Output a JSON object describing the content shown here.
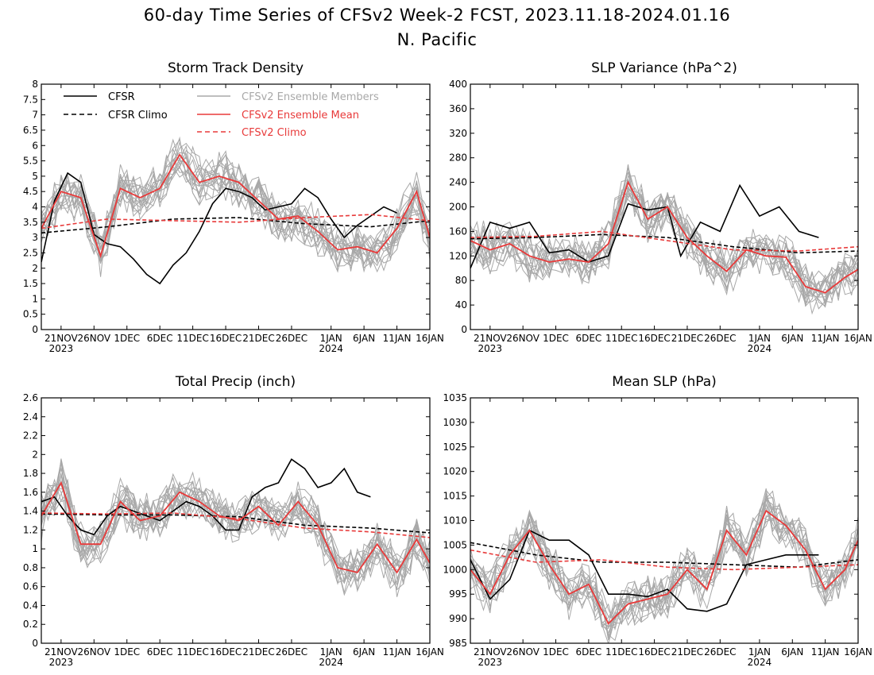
{
  "header": {
    "title_line1": "60-day Time Series of CFSv2 Week-2 FCST, 2023.11.18-2024.01.16",
    "title_line2": "N. Pacific"
  },
  "legend": {
    "cfsr": "CFSR",
    "cfsr_climo": "CFSR Climo",
    "members": "CFSv2 Ensemble Members",
    "ens_mean": "CFSv2 Ensemble Mean",
    "cfsv2_climo": "CFSv2 Climo"
  },
  "colors": {
    "cfsr": "#000000",
    "members": "#a8a8a8",
    "ens_mean": "#e83a3a",
    "cfsv2_climo": "#e83a3a"
  },
  "x_axis": {
    "tick_labels": [
      "21NOV",
      "26NOV",
      "1DEC",
      "6DEC",
      "11DEC",
      "16DEC",
      "21DEC",
      "26DEC",
      "1JAN",
      "6JAN",
      "11JAN",
      "16JAN"
    ],
    "year_labels": [
      "2023",
      "2024"
    ]
  },
  "chart_data": [
    {
      "type": "line",
      "title": "Storm Track Density",
      "ylim": [
        0,
        8
      ],
      "yticks": [
        "0",
        "0.5",
        "1",
        "1.5",
        "2",
        "2.5",
        "3",
        "3.5",
        "4",
        "4.5",
        "5",
        "5.5",
        "6",
        "6.5",
        "7",
        "7.5",
        "8"
      ],
      "x": "days since 2023-11-18 (0..59)",
      "series": [
        {
          "name": "CFSR",
          "days": [
            0,
            2,
            4,
            6,
            8,
            10,
            12,
            14,
            16,
            18,
            20,
            22,
            24,
            26,
            28,
            30,
            32,
            34,
            36,
            38,
            40,
            42,
            44,
            46,
            48,
            50,
            52,
            54
          ],
          "values": [
            2.2,
            4.2,
            5.1,
            4.8,
            3.1,
            2.8,
            2.7,
            2.3,
            1.8,
            1.5,
            2.1,
            2.5,
            3.2,
            4.1,
            4.6,
            4.5,
            4.3,
            3.9,
            4.0,
            4.1,
            4.6,
            4.3,
            3.6,
            3.0,
            3.4,
            3.7,
            4.0,
            3.8
          ]
        },
        {
          "name": "CFSR Climo",
          "days": [
            0,
            10,
            20,
            30,
            40,
            50,
            59
          ],
          "values": [
            3.15,
            3.35,
            3.6,
            3.65,
            3.45,
            3.35,
            3.55
          ]
        },
        {
          "name": "CFSv2 Ensemble Mean",
          "days": [
            0,
            3,
            6,
            9,
            12,
            15,
            18,
            21,
            24,
            27,
            30,
            33,
            36,
            39,
            42,
            45,
            48,
            51,
            54,
            57,
            59
          ],
          "values": [
            3.3,
            4.5,
            4.3,
            2.4,
            4.6,
            4.3,
            4.6,
            5.7,
            4.8,
            5.0,
            4.8,
            4.2,
            3.6,
            3.7,
            3.2,
            2.6,
            2.7,
            2.5,
            3.3,
            4.5,
            3.0
          ]
        },
        {
          "name": "CFSv2 Climo",
          "days": [
            0,
            10,
            20,
            30,
            40,
            50,
            59
          ],
          "values": [
            3.3,
            3.6,
            3.55,
            3.5,
            3.65,
            3.75,
            3.55
          ]
        }
      ]
    },
    {
      "type": "line",
      "title": "SLP Variance (hPa^2)",
      "ylim": [
        0,
        400
      ],
      "yticks": [
        "0",
        "40",
        "80",
        "120",
        "160",
        "200",
        "240",
        "280",
        "320",
        "360",
        "400"
      ],
      "x": "days since 2023-11-18 (0..59)",
      "series": [
        {
          "name": "CFSR",
          "days": [
            0,
            3,
            6,
            9,
            12,
            15,
            18,
            21,
            24,
            27,
            30,
            32,
            35,
            38,
            41,
            44,
            47,
            50,
            53
          ],
          "values": [
            100,
            175,
            165,
            175,
            125,
            130,
            110,
            120,
            205,
            195,
            200,
            120,
            175,
            160,
            235,
            185,
            200,
            160,
            150
          ]
        },
        {
          "name": "CFSR Climo",
          "days": [
            0,
            10,
            20,
            30,
            40,
            50,
            59
          ],
          "values": [
            148,
            150,
            155,
            150,
            135,
            125,
            128
          ]
        },
        {
          "name": "CFSv2 Ensemble Mean",
          "days": [
            0,
            3,
            6,
            9,
            12,
            15,
            18,
            21,
            24,
            27,
            30,
            33,
            36,
            39,
            42,
            45,
            48,
            51,
            54,
            57,
            59
          ],
          "values": [
            145,
            130,
            140,
            120,
            110,
            115,
            110,
            140,
            240,
            180,
            200,
            150,
            120,
            95,
            130,
            120,
            118,
            70,
            60,
            85,
            98
          ]
        },
        {
          "name": "CFSv2 Climo",
          "days": [
            0,
            10,
            20,
            30,
            40,
            50,
            59
          ],
          "values": [
            150,
            152,
            160,
            145,
            130,
            128,
            135
          ]
        }
      ]
    },
    {
      "type": "line",
      "title": "Total Precip (inch)",
      "ylim": [
        0,
        2.6
      ],
      "yticks": [
        "0",
        "0.2",
        "0.4",
        "0.6",
        "0.8",
        "1",
        "1.2",
        "1.4",
        "1.6",
        "1.8",
        "2",
        "2.2",
        "2.4",
        "2.6"
      ],
      "x": "days since 2023-11-18 (0..59)",
      "series": [
        {
          "name": "CFSR",
          "days": [
            0,
            2,
            4,
            6,
            8,
            10,
            12,
            14,
            16,
            18,
            20,
            22,
            24,
            26,
            28,
            30,
            32,
            34,
            36,
            38,
            40,
            42,
            44,
            46,
            48,
            50
          ],
          "values": [
            1.5,
            1.55,
            1.35,
            1.2,
            1.15,
            1.35,
            1.45,
            1.4,
            1.35,
            1.3,
            1.4,
            1.5,
            1.45,
            1.35,
            1.2,
            1.2,
            1.55,
            1.65,
            1.7,
            1.95,
            1.85,
            1.65,
            1.7,
            1.85,
            1.6,
            1.55
          ]
        },
        {
          "name": "CFSR Climo",
          "days": [
            0,
            10,
            20,
            30,
            40,
            50,
            59
          ],
          "values": [
            1.37,
            1.36,
            1.36,
            1.34,
            1.25,
            1.22,
            1.17
          ]
        },
        {
          "name": "CFSv2 Ensemble Mean",
          "days": [
            0,
            3,
            6,
            9,
            12,
            15,
            18,
            21,
            24,
            27,
            30,
            33,
            36,
            39,
            42,
            45,
            48,
            51,
            54,
            57,
            59
          ],
          "values": [
            1.35,
            1.7,
            1.05,
            1.05,
            1.5,
            1.3,
            1.35,
            1.6,
            1.5,
            1.35,
            1.3,
            1.45,
            1.25,
            1.5,
            1.25,
            0.8,
            0.75,
            1.05,
            0.75,
            1.1,
            0.85
          ]
        },
        {
          "name": "CFSv2 Climo",
          "days": [
            0,
            10,
            20,
            30,
            40,
            50,
            59
          ],
          "values": [
            1.38,
            1.37,
            1.38,
            1.32,
            1.22,
            1.18,
            1.12
          ]
        }
      ]
    },
    {
      "type": "line",
      "title": "Mean SLP (hPa)",
      "ylim": [
        985,
        1035
      ],
      "yticks": [
        "985",
        "990",
        "995",
        "1000",
        "1005",
        "1010",
        "1015",
        "1020",
        "1025",
        "1030",
        "1035"
      ],
      "x": "days since 2023-11-18 (0..59)",
      "series": [
        {
          "name": "CFSR",
          "days": [
            0,
            3,
            6,
            9,
            12,
            15,
            18,
            21,
            24,
            27,
            30,
            33,
            36,
            39,
            42,
            45,
            48,
            51,
            53
          ],
          "values": [
            1002,
            994,
            998,
            1008,
            1006,
            1006,
            1003,
            995,
            995,
            994.5,
            996,
            992,
            991.5,
            993,
            1001,
            1002,
            1003,
            1003,
            1003
          ]
        },
        {
          "name": "CFSR Climo",
          "days": [
            0,
            10,
            20,
            30,
            40,
            50,
            59
          ],
          "values": [
            1005.5,
            1003,
            1001.5,
            1001.5,
            1001,
            1000.5,
            1002
          ]
        },
        {
          "name": "CFSv2 Ensemble Mean",
          "days": [
            0,
            3,
            6,
            9,
            12,
            15,
            18,
            21,
            24,
            27,
            30,
            33,
            36,
            39,
            42,
            45,
            48,
            51,
            54,
            57,
            59
          ],
          "values": [
            1000,
            995,
            1003,
            1008,
            1001,
            995,
            997,
            989,
            993,
            994,
            995,
            1000,
            996,
            1008,
            1003,
            1012,
            1009,
            1004,
            996,
            1000,
            1006
          ]
        },
        {
          "name": "CFSv2 Climo",
          "days": [
            0,
            10,
            20,
            30,
            40,
            50,
            59
          ],
          "values": [
            1004,
            1001.5,
            1002,
            1000.5,
            1000,
            1000.5,
            1001
          ]
        }
      ]
    }
  ]
}
